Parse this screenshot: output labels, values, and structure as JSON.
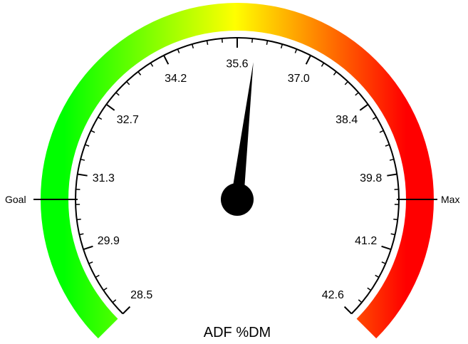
{
  "chart_data": {
    "type": "gauge",
    "title": "ADF %DM",
    "min": 28.5,
    "max": 42.6,
    "value": 35.9,
    "tick_labels": [
      "28.5",
      "29.9",
      "31.3",
      "32.7",
      "34.2",
      "35.6",
      "37.0",
      "38.4",
      "39.8",
      "41.2",
      "42.6"
    ],
    "goal_label": "Goal",
    "max_label": "Max",
    "color_stops": [
      "#00ff00",
      "#ffff00",
      "#ff0000"
    ]
  }
}
